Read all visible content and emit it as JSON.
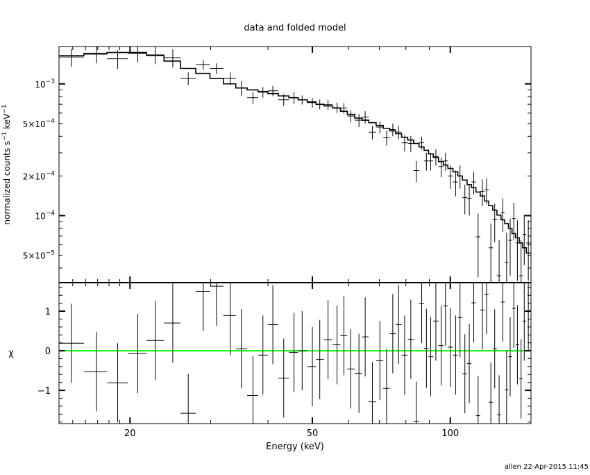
{
  "chart_data": [
    {
      "type": "scatter",
      "panel": "top",
      "title": "data and folded model",
      "ylabel": {
        "text": "normalized counts s",
        "sup1": "−1",
        "text2": " keV",
        "sup2": "−1"
      },
      "xlim": [
        14,
        150
      ],
      "ylim": [
        3.1e-05,
        0.00192
      ],
      "xscale": "log",
      "yscale": "log",
      "grid": false,
      "y_ticks": [
        {
          "value": 0.001,
          "mantissa": "",
          "base": "10",
          "exp": "−3"
        },
        {
          "value": 0.0005,
          "mantissa": "5×",
          "base": "10",
          "exp": "−4"
        },
        {
          "value": 0.0002,
          "mantissa": "2×",
          "base": "10",
          "exp": "−4"
        },
        {
          "value": 0.0001,
          "mantissa": "",
          "base": "10",
          "exp": "−4"
        },
        {
          "value": 5e-05,
          "mantissa": "5×",
          "base": "10",
          "exp": "−5"
        }
      ],
      "energy": [
        14.9,
        16.9,
        18.8,
        20.8,
        22.7,
        24.8,
        26.8,
        28.9,
        30.9,
        33.1,
        35.0,
        37.1,
        39.0,
        41.0,
        43.3,
        45.6,
        47.5,
        50.0,
        51.9,
        54.1,
        56.6,
        58.6,
        60.6,
        63.2,
        65.2,
        67.6,
        70.2,
        72.6,
        74.9,
        77.1,
        79.5,
        82.0,
        84.3,
        86.6,
        88.7,
        90.6,
        93.0,
        95.5,
        97.6,
        100.0,
        102.7,
        105.0,
        107.6,
        110.0,
        112.5,
        115.0,
        117.5,
        120.0,
        122.6,
        125.0,
        127.8,
        130.2,
        132.7,
        135.1,
        137.6,
        140.1,
        142.7,
        145.0,
        148.0
      ],
      "series": [
        {
          "kind": "data",
          "values": [
            0.0016,
            0.00168,
            0.00155,
            0.0017,
            0.00166,
            0.00158,
            0.0011,
            0.0014,
            0.00131,
            0.0011,
            0.00093,
            0.000785,
            0.000865,
            0.000886,
            0.000757,
            0.000785,
            0.000757,
            0.00072,
            0.0007,
            0.000695,
            0.00066,
            0.000655,
            0.00057,
            0.00053,
            0.00056,
            0.00043,
            0.00047,
            0.00039,
            0.00045,
            0.00043,
            0.000357,
            0.000353,
            0.00022,
            0.000357,
            0.00026,
            0.00026,
            0.00028,
            0.000236,
            0.00026,
            0.0002,
            0.00018,
            0.0002,
            0.000137,
            0.000135,
            0.00018,
            6.9e-05,
            0.000153,
            0.000157,
            5.7e-05,
            9.3e-05,
            3.5e-05,
            0.000105,
            4.4e-05,
            6.5e-05,
            9.5e-05,
            6.2e-05,
            3.5e-05,
            7.2e-05,
            6.2e-05
          ],
          "errors": [
            0.00025,
            0.00025,
            0.00025,
            0.00025,
            0.00025,
            0.00025,
            0.00012,
            0.00012,
            0.00012,
            0.00012,
            0.00012,
            8e-05,
            8e-05,
            8e-05,
            8e-05,
            8e-05,
            6e-05,
            6e-05,
            6e-05,
            6e-05,
            6e-05,
            6e-05,
            6e-05,
            6e-05,
            6e-05,
            5e-05,
            5e-05,
            5e-05,
            5e-05,
            5e-05,
            5e-05,
            5e-05,
            4e-05,
            4e-05,
            4e-05,
            4e-05,
            4e-05,
            4e-05,
            4e-05,
            4e-05,
            4e-05,
            4e-05,
            3.5e-05,
            3.5e-05,
            3.5e-05,
            3.5e-05,
            3.5e-05,
            3.5e-05,
            3e-05,
            3e-05,
            3e-05,
            3e-05,
            3e-05,
            3e-05,
            3e-05,
            3e-05,
            3e-05,
            3e-05,
            3e-05
          ]
        },
        {
          "kind": "model",
          "values": [
            0.00164,
            0.0017,
            0.00173,
            0.00173,
            0.00164,
            0.00149,
            0.00131,
            0.0012,
            0.0011,
            0.001,
            0.00093,
            0.0009,
            0.000875,
            0.000844,
            0.00081,
            0.000785,
            0.000757,
            0.00073,
            0.0007,
            0.00068,
            0.000655,
            0.00062,
            0.000587,
            0.00055,
            0.00053,
            0.000507,
            0.000483,
            0.00046,
            0.00044,
            0.000418,
            0.000393,
            0.000375,
            0.000353,
            0.000332,
            0.000313,
            0.000294,
            0.000277,
            0.000257,
            0.000242,
            0.000228,
            0.000215,
            0.0002,
            0.000186,
            0.000172,
            0.000163,
            0.000151,
            0.000141,
            0.000129,
            0.000119,
            0.00011,
            0.000101,
            9.3e-05,
            8.7e-05,
            8e-05,
            7.3e-05,
            6.8e-05,
            6.2e-05,
            5.7e-05,
            5.2e-05
          ]
        }
      ]
    },
    {
      "type": "scatter",
      "panel": "bottom",
      "xlabel": "Energy (keV)",
      "ylabel": "χ",
      "xlim": [
        14,
        150
      ],
      "ylim": [
        -1.84,
        1.72
      ],
      "xscale": "log",
      "x_ticks": [
        "20",
        "50",
        "100"
      ],
      "x_tick_values": [
        20,
        50,
        100
      ],
      "y_ticks": [
        "1",
        "0",
        "−1"
      ],
      "y_tick_values": [
        1,
        0,
        -1
      ],
      "zero_line_color": "#00ff00",
      "chi": [
        0.19,
        -0.53,
        -0.81,
        -0.07,
        0.26,
        0.7,
        -1.58,
        1.5,
        1.63,
        0.89,
        0.05,
        -1.13,
        -0.11,
        0.66,
        -0.69,
        -0.04,
        0.0,
        -0.4,
        -0.22,
        0.28,
        0.15,
        0.38,
        -0.46,
        -0.57,
        0.35,
        -1.29,
        -0.25,
        -0.95,
        0.43,
        0.66,
        -0.11,
        0.29,
        -1.78,
        1.19,
        0.06,
        -0.15,
        0.75,
        0.13,
        1.13,
        0.09,
        -0.11,
        0.84,
        -0.58,
        -0.32,
        1.21,
        -1.64,
        1.03,
        1.42,
        -1.3,
        0.05,
        -1.62,
        1.23,
        -0.99,
        -0.15,
        1.07,
        0.15,
        -0.71,
        0.75,
        1.01
      ]
    }
  ],
  "footer": {
    "stamp": "allen 22-Apr-2015 11:45"
  }
}
